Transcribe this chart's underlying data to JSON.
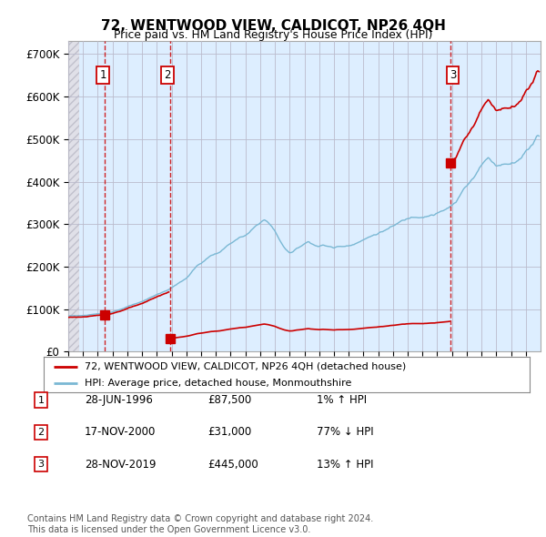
{
  "title": "72, WENTWOOD VIEW, CALDICOT, NP26 4QH",
  "subtitle": "Price paid vs. HM Land Registry's House Price Index (HPI)",
  "ylabel_ticks": [
    "£0",
    "£100K",
    "£200K",
    "£300K",
    "£400K",
    "£500K",
    "£600K",
    "£700K"
  ],
  "ytick_vals": [
    0,
    100000,
    200000,
    300000,
    400000,
    500000,
    600000,
    700000
  ],
  "ylim": [
    0,
    730000
  ],
  "xlim_start": 1994.0,
  "xlim_end": 2026.0,
  "sales": [
    {
      "num": 1,
      "year": 1996.49,
      "price": 87500
    },
    {
      "num": 2,
      "year": 2000.88,
      "price": 31000
    },
    {
      "num": 3,
      "year": 2019.91,
      "price": 445000
    }
  ],
  "legend_line1": "72, WENTWOOD VIEW, CALDICOT, NP26 4QH (detached house)",
  "legend_line2": "HPI: Average price, detached house, Monmouthshire",
  "table_rows": [
    {
      "num": 1,
      "date": "28-JUN-1996",
      "price": "£87,500",
      "hpi": "1% ↑ HPI"
    },
    {
      "num": 2,
      "date": "17-NOV-2000",
      "price": "£31,000",
      "hpi": "77% ↓ HPI"
    },
    {
      "num": 3,
      "date": "28-NOV-2019",
      "price": "£445,000",
      "hpi": "13% ↑ HPI"
    }
  ],
  "footnote": "Contains HM Land Registry data © Crown copyright and database right 2024.\nThis data is licensed under the Open Government Licence v3.0.",
  "hpi_color": "#7ab8d4",
  "sale_color": "#cc0000",
  "hpi_shade_color": "#ddeeff",
  "hatch_color": "#d0d0d8",
  "grid_color": "#cccccc",
  "hpi_anchors": {
    "1994.0": 84000,
    "1994.25": 84500,
    "1994.5": 84800,
    "1994.75": 85000,
    "1995.0": 85500,
    "1995.25": 86000,
    "1995.5": 86500,
    "1995.75": 87000,
    "1996.0": 88000,
    "1996.25": 89000,
    "1996.5": 90500,
    "1996.75": 92000,
    "1997.0": 94000,
    "1997.25": 97000,
    "1997.5": 100000,
    "1997.75": 103000,
    "1998.0": 106000,
    "1998.25": 109000,
    "1998.5": 112000,
    "1998.75": 114000,
    "1999.0": 116000,
    "1999.25": 120000,
    "1999.5": 124000,
    "1999.75": 128000,
    "2000.0": 132000,
    "2000.25": 136000,
    "2000.5": 140000,
    "2000.75": 144000,
    "2001.0": 148000,
    "2001.25": 155000,
    "2001.5": 160000,
    "2001.75": 165000,
    "2002.0": 170000,
    "2002.25": 180000,
    "2002.5": 192000,
    "2002.75": 200000,
    "2003.0": 205000,
    "2003.25": 213000,
    "2003.5": 220000,
    "2003.75": 225000,
    "2004.0": 228000,
    "2004.25": 232000,
    "2004.5": 238000,
    "2004.75": 245000,
    "2005.0": 252000,
    "2005.25": 258000,
    "2005.5": 263000,
    "2005.75": 266000,
    "2006.0": 268000,
    "2006.25": 274000,
    "2006.5": 282000,
    "2006.75": 290000,
    "2007.0": 298000,
    "2007.25": 305000,
    "2007.5": 300000,
    "2007.75": 290000,
    "2008.0": 278000,
    "2008.25": 262000,
    "2008.5": 248000,
    "2008.75": 235000,
    "2009.0": 228000,
    "2009.25": 230000,
    "2009.5": 238000,
    "2009.75": 244000,
    "2010.0": 250000,
    "2010.25": 255000,
    "2010.5": 252000,
    "2010.75": 248000,
    "2011.0": 245000,
    "2011.25": 248000,
    "2011.5": 246000,
    "2011.75": 244000,
    "2012.0": 242000,
    "2012.25": 244000,
    "2012.5": 245000,
    "2012.75": 246000,
    "2013.0": 248000,
    "2013.25": 252000,
    "2013.5": 256000,
    "2013.75": 260000,
    "2014.0": 264000,
    "2014.25": 268000,
    "2014.5": 272000,
    "2014.75": 276000,
    "2015.0": 280000,
    "2015.25": 284000,
    "2015.5": 288000,
    "2015.75": 292000,
    "2016.0": 295000,
    "2016.25": 300000,
    "2016.5": 305000,
    "2016.75": 308000,
    "2017.0": 312000,
    "2017.25": 316000,
    "2017.5": 318000,
    "2017.75": 320000,
    "2018.0": 322000,
    "2018.25": 325000,
    "2018.5": 328000,
    "2018.75": 330000,
    "2019.0": 333000,
    "2019.25": 336000,
    "2019.5": 340000,
    "2019.75": 344000,
    "2020.0": 350000,
    "2020.25": 355000,
    "2020.5": 368000,
    "2020.75": 385000,
    "2021.0": 395000,
    "2021.25": 408000,
    "2021.5": 420000,
    "2021.75": 435000,
    "2022.0": 448000,
    "2022.25": 460000,
    "2022.5": 465000,
    "2022.75": 455000,
    "2023.0": 448000,
    "2023.25": 450000,
    "2023.5": 452000,
    "2023.75": 455000,
    "2024.0": 458000,
    "2024.25": 462000,
    "2024.5": 468000,
    "2024.75": 476000,
    "2025.0": 490000,
    "2025.5": 510000,
    "2025.75": 530000
  }
}
